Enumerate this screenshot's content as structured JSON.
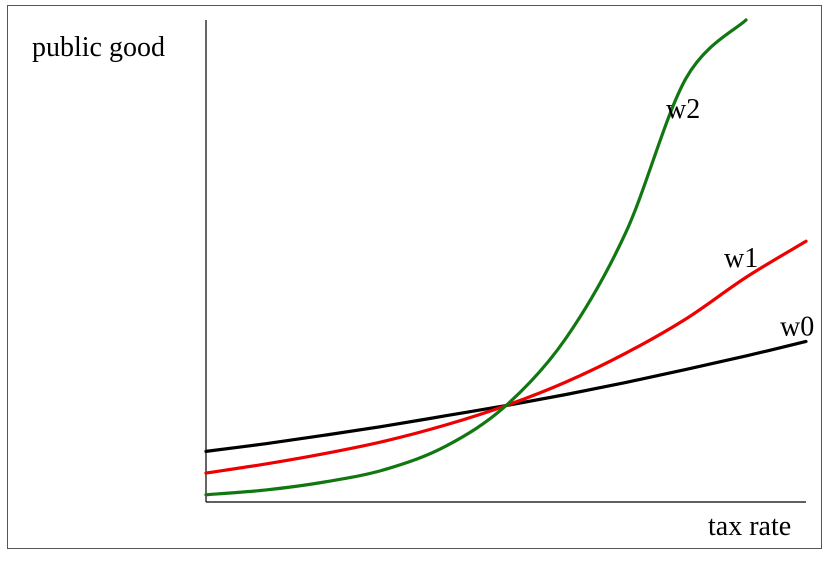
{
  "chart_data": {
    "type": "line",
    "title": "",
    "xlabel": "tax rate",
    "ylabel": "public good",
    "xlim": [
      0,
      1
    ],
    "ylim": [
      0,
      1
    ],
    "grid": false,
    "legend": "inline labels",
    "series": [
      {
        "name": "w0",
        "color": "#000000",
        "x": [
          0.0,
          0.1,
          0.2,
          0.3,
          0.4,
          0.5,
          0.6,
          0.7,
          0.8,
          0.9,
          1.0
        ],
        "y": [
          0.105,
          0.121,
          0.139,
          0.158,
          0.179,
          0.2,
          0.223,
          0.248,
          0.275,
          0.303,
          0.333
        ]
      },
      {
        "name": "w1",
        "color": "#ee0000",
        "x": [
          0.0,
          0.1,
          0.2,
          0.3,
          0.4,
          0.5,
          0.6,
          0.7,
          0.8,
          0.9,
          1.0
        ],
        "y": [
          0.06,
          0.079,
          0.101,
          0.127,
          0.16,
          0.2,
          0.249,
          0.309,
          0.38,
          0.466,
          0.541
        ]
      },
      {
        "name": "w2",
        "color": "#117711",
        "x": [
          0.0,
          0.1,
          0.2,
          0.3,
          0.4,
          0.5,
          0.6,
          0.7,
          0.8,
          0.9
        ],
        "y": [
          0.015,
          0.025,
          0.042,
          0.068,
          0.116,
          0.2,
          0.34,
          0.56,
          0.879,
          1.0
        ]
      }
    ]
  }
}
